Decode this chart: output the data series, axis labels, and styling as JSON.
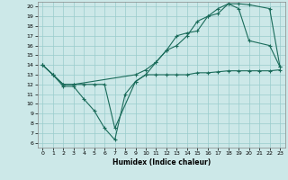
{
  "xlabel": "Humidex (Indice chaleur)",
  "bg_color": "#cce8e8",
  "line_color": "#1a6b5a",
  "grid_color": "#99cccc",
  "xlim": [
    -0.5,
    23.5
  ],
  "ylim": [
    5.5,
    20.5
  ],
  "xticks": [
    0,
    1,
    2,
    3,
    4,
    5,
    6,
    7,
    8,
    9,
    10,
    11,
    12,
    13,
    14,
    15,
    16,
    17,
    18,
    19,
    20,
    21,
    22,
    23
  ],
  "yticks": [
    6,
    7,
    8,
    9,
    10,
    11,
    12,
    13,
    14,
    15,
    16,
    17,
    18,
    19,
    20
  ],
  "line1_x": [
    0,
    1,
    2,
    3,
    4,
    5,
    6,
    7,
    8,
    9,
    10,
    11,
    12,
    13,
    14,
    15,
    16,
    17,
    18,
    19,
    20,
    21,
    22,
    23
  ],
  "line1_y": [
    14.0,
    13.0,
    11.8,
    11.8,
    10.5,
    9.3,
    7.5,
    6.3,
    11.0,
    12.3,
    13.0,
    13.0,
    13.0,
    13.0,
    13.0,
    13.2,
    13.2,
    13.3,
    13.4,
    13.4,
    13.4,
    13.4,
    13.4,
    13.5
  ],
  "line2_x": [
    0,
    1,
    2,
    3,
    4,
    5,
    6,
    7,
    9,
    10,
    11,
    12,
    13,
    14,
    15,
    16,
    17,
    18,
    19,
    20,
    22,
    23
  ],
  "line2_y": [
    14.0,
    13.0,
    12.0,
    12.0,
    12.0,
    12.0,
    12.0,
    7.5,
    12.3,
    13.0,
    14.3,
    15.5,
    16.0,
    17.0,
    18.5,
    19.0,
    19.3,
    20.3,
    20.3,
    20.2,
    19.8,
    13.8
  ],
  "line3_x": [
    0,
    1,
    2,
    3,
    9,
    10,
    11,
    12,
    13,
    14,
    15,
    16,
    17,
    18,
    19,
    20,
    22,
    23
  ],
  "line3_y": [
    14.0,
    13.0,
    12.0,
    12.0,
    13.0,
    13.5,
    14.3,
    15.5,
    17.0,
    17.3,
    17.5,
    19.0,
    19.8,
    20.3,
    19.8,
    16.5,
    16.0,
    13.8
  ]
}
